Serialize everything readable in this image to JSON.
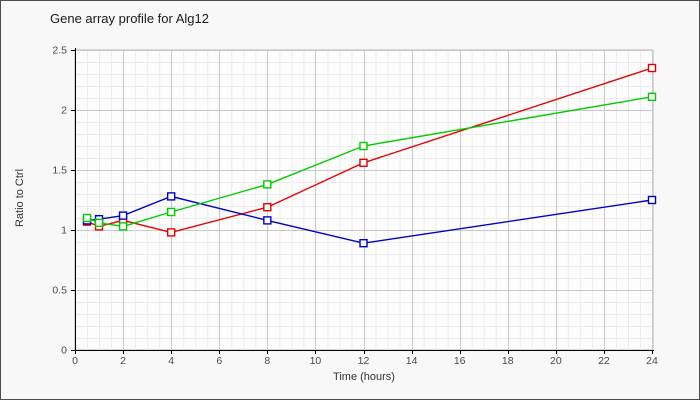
{
  "window": {
    "title": "Gene array profile for Alg12"
  },
  "chart_data": {
    "type": "line",
    "title": "Gene array profile for Alg12",
    "xlabel": "Time (hours)",
    "ylabel": "Ratio to Ctrl",
    "x": [
      0.5,
      1,
      2,
      4,
      8,
      12,
      24
    ],
    "series": [
      {
        "name": "red-series",
        "color": "#e60000",
        "values": [
          1.07,
          1.03,
          1.08,
          0.98,
          1.19,
          1.56,
          2.35
        ]
      },
      {
        "name": "blue-series",
        "color": "#0000cc",
        "values": [
          1.08,
          1.09,
          1.12,
          1.28,
          1.08,
          0.89,
          1.25
        ]
      },
      {
        "name": "green-series",
        "color": "#00cc00",
        "values": [
          1.1,
          1.06,
          1.03,
          1.15,
          1.38,
          1.7,
          2.11
        ]
      }
    ],
    "xlim": [
      0,
      24
    ],
    "ylim": [
      0,
      2.5
    ],
    "x_ticks": [
      0,
      2,
      4,
      6,
      8,
      10,
      12,
      14,
      16,
      18,
      20,
      22,
      24
    ],
    "y_ticks": [
      0,
      0.5,
      1,
      1.5,
      2,
      2.5
    ],
    "x_minor_step": 0.5,
    "y_minor_step": 0.1,
    "grid": true,
    "legend": "none",
    "marker": "open-square"
  },
  "colors": {
    "figure_bg": "#f8f8f8",
    "plot_bg": "#fdfdfd",
    "grid_major": "#c9c9c9",
    "grid_minor": "#ececec",
    "plot_border": "#b3b3b3",
    "axis": "#000000",
    "tick_text": "#4a4a4a",
    "title_text": "#1a1a1a"
  }
}
